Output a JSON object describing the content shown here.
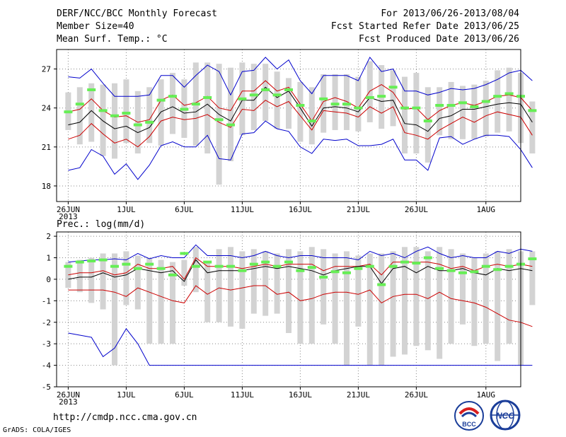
{
  "header": {
    "title": "DERF/NCC/BCC Monthly Forecast",
    "member_size": "Member Size=40",
    "variable": "Mean Surf. Temp.: °C",
    "period": "For 2013/06/26-2013/08/04",
    "refer_date": "Fcst Started Refer Date 2013/06/25",
    "produced_date": "Fcst Produced Date 2013/06/26"
  },
  "footer": {
    "url": "http://cmdp.ncc.cma.gov.cn",
    "credit": "GrADS: COLA/IGES",
    "logo_left": "BCC",
    "logo_right": "NCC"
  },
  "colors": {
    "envelope": "#0000cc",
    "spread": "#cc0000",
    "mean": "#000000",
    "bar": "#d3d3d3",
    "marker": "#66ee55"
  },
  "chart_data": [
    {
      "type": "line",
      "title": "Mean Surf. Temp.: °C",
      "x_tick_labels": [
        "26JUN",
        "1JUL",
        "6JUL",
        "11JUL",
        "16JUL",
        "21JUL",
        "26JUL",
        "1AUG"
      ],
      "x_year_label": "2013",
      "x_tick_day_index": [
        0,
        5,
        10,
        15,
        20,
        25,
        30,
        36
      ],
      "x_range": [
        -1,
        39
      ],
      "ylim": [
        16.8,
        28.5
      ],
      "y_ticks": [
        18,
        21,
        24,
        27
      ],
      "series": [
        {
          "name": "max",
          "values": [
            26.4,
            26.3,
            27.0,
            25.9,
            24.9,
            24.9,
            24.9,
            25.0,
            26.5,
            26.5,
            25.6,
            26.5,
            27.3,
            26.8,
            25.0,
            26.8,
            26.9,
            27.9,
            27.0,
            27.7,
            26.1,
            25.1,
            26.5,
            26.5,
            26.5,
            26.1,
            27.9,
            26.8,
            27.0,
            25.3,
            25.3,
            25.0,
            25.2,
            25.5,
            25.4,
            25.5,
            25.8,
            26.2,
            26.7,
            26.9,
            26.1
          ]
        },
        {
          "name": "upper",
          "values": [
            23.7,
            23.9,
            24.7,
            23.8,
            23.3,
            23.4,
            22.9,
            23.1,
            24.6,
            25.0,
            24.2,
            24.4,
            24.9,
            24.0,
            23.8,
            25.3,
            25.3,
            26.1,
            25.3,
            25.6,
            24.3,
            23.0,
            24.5,
            24.8,
            24.5,
            24.0,
            25.3,
            25.8,
            25.2,
            23.9,
            24.0,
            23.1,
            23.8,
            24.2,
            24.4,
            24.2,
            24.5,
            24.9,
            25.0,
            24.8,
            23.8
          ]
        },
        {
          "name": "mean",
          "values": [
            22.7,
            22.9,
            23.8,
            23.0,
            22.4,
            22.6,
            22.1,
            22.5,
            23.7,
            24.1,
            23.6,
            23.7,
            24.3,
            23.5,
            23.0,
            24.6,
            24.6,
            25.6,
            24.8,
            25.3,
            24.0,
            22.6,
            24.0,
            24.1,
            24.0,
            23.7,
            24.8,
            24.5,
            24.6,
            22.8,
            22.7,
            22.2,
            23.2,
            23.4,
            23.9,
            23.9,
            24.1,
            24.3,
            24.4,
            24.3,
            22.9
          ]
        },
        {
          "name": "lower",
          "values": [
            21.6,
            21.9,
            22.8,
            22.0,
            21.3,
            21.6,
            21.0,
            21.8,
            23.0,
            23.3,
            23.1,
            23.2,
            23.5,
            22.9,
            22.5,
            23.9,
            23.8,
            24.6,
            24.1,
            24.5,
            23.4,
            22.3,
            23.8,
            23.7,
            23.6,
            23.3,
            24.1,
            23.6,
            24.1,
            22.1,
            21.9,
            21.6,
            22.3,
            22.8,
            23.3,
            22.9,
            23.4,
            23.7,
            23.5,
            23.3,
            21.9
          ]
        },
        {
          "name": "min",
          "values": [
            19.2,
            19.4,
            20.8,
            20.3,
            18.9,
            19.7,
            18.5,
            19.6,
            21.1,
            21.4,
            21.0,
            21.0,
            21.9,
            20.1,
            20.0,
            22.0,
            22.1,
            23.0,
            22.4,
            22.2,
            21.0,
            20.5,
            21.6,
            21.5,
            21.6,
            21.1,
            21.1,
            21.2,
            21.6,
            20.0,
            20.0,
            19.2,
            21.7,
            21.8,
            21.2,
            21.6,
            21.9,
            21.9,
            21.8,
            20.8,
            19.4
          ]
        },
        {
          "name": "bar_top",
          "values": [
            25.2,
            25.6,
            25.9,
            25.8,
            25.9,
            26.2,
            25.3,
            25.6,
            26.2,
            26.7,
            26.2,
            27.5,
            27.5,
            27.4,
            27.1,
            27.5,
            27.4,
            27.4,
            26.8,
            26.3,
            26.0,
            25.6,
            26.6,
            26.6,
            26.6,
            26.4,
            27.6,
            27.3,
            26.9,
            26.4,
            26.7,
            25.6,
            25.6,
            26.0,
            25.7,
            25.8,
            26.1,
            26.9,
            27.1,
            26.7,
            24.5
          ]
        },
        {
          "name": "bar_bottom",
          "values": [
            22.3,
            21.2,
            21.4,
            20.3,
            20.1,
            21.3,
            20.5,
            21.3,
            21.1,
            22.0,
            21.7,
            21.1,
            20.5,
            18.1,
            19.9,
            21.9,
            22.3,
            23.0,
            22.4,
            22.4,
            21.4,
            21.2,
            22.1,
            22.3,
            22.3,
            22.2,
            22.9,
            22.4,
            22.6,
            20.5,
            20.5,
            19.8,
            21.9,
            21.6,
            21.6,
            21.6,
            21.8,
            22.1,
            22.2,
            21.3,
            20.5
          ]
        },
        {
          "name": "marker",
          "values": [
            23.7,
            24.3,
            25.4,
            23.8,
            23.4,
            23.6,
            22.7,
            22.9,
            24.6,
            24.9,
            23.9,
            24.3,
            24.8,
            23.1,
            22.7,
            24.7,
            25.0,
            25.4,
            25.0,
            25.4,
            24.2,
            23.0,
            24.7,
            24.3,
            24.3,
            24.0,
            24.8,
            24.9,
            25.6,
            24.0,
            24.0,
            23.0,
            24.2,
            24.2,
            24.4,
            24.1,
            24.5,
            24.9,
            25.1,
            24.9,
            23.8
          ]
        }
      ]
    },
    {
      "type": "line",
      "title": "Prec.: log(mm/d)",
      "x_tick_labels": [
        "26JUN",
        "1JUL",
        "6JUL",
        "11JUL",
        "16JUL",
        "21JUL",
        "26JUL",
        "1AUG"
      ],
      "x_year_label": "2013",
      "x_tick_day_index": [
        0,
        5,
        10,
        15,
        20,
        25,
        30,
        36
      ],
      "x_range": [
        -1,
        39
      ],
      "ylim": [
        -5,
        2.2
      ],
      "y_ticks": [
        -5,
        -4,
        -3,
        -2,
        -1,
        0,
        1,
        2
      ],
      "series": [
        {
          "name": "max",
          "values": [
            0.8,
            0.85,
            0.9,
            0.9,
            0.95,
            0.9,
            1.2,
            0.95,
            1.1,
            1.0,
            1.0,
            1.6,
            1.1,
            1.1,
            1.1,
            1.0,
            1.1,
            1.3,
            1.1,
            1.0,
            1.1,
            1.1,
            1.0,
            1.0,
            1.0,
            0.9,
            1.3,
            1.1,
            1.2,
            1.0,
            1.3,
            1.5,
            1.2,
            1.0,
            1.1,
            1.0,
            1.0,
            1.3,
            1.2,
            1.4,
            1.3
          ]
        },
        {
          "name": "upper",
          "values": [
            0.2,
            0.3,
            0.3,
            0.4,
            0.2,
            0.3,
            0.7,
            0.5,
            0.5,
            0.6,
            0.0,
            1.0,
            0.6,
            0.6,
            0.6,
            0.5,
            0.6,
            0.7,
            0.6,
            0.7,
            0.7,
            0.7,
            0.4,
            0.6,
            0.6,
            0.6,
            0.7,
            0.2,
            0.8,
            0.8,
            0.8,
            0.8,
            0.7,
            0.5,
            0.6,
            0.4,
            0.6,
            0.7,
            0.6,
            0.7,
            0.6
          ]
        },
        {
          "name": "mean",
          "values": [
            0.0,
            0.1,
            0.1,
            0.3,
            0.1,
            0.2,
            0.5,
            0.4,
            0.3,
            0.4,
            -0.1,
            0.9,
            0.3,
            0.4,
            0.4,
            0.4,
            0.5,
            0.6,
            0.5,
            0.6,
            0.5,
            0.4,
            0.2,
            0.4,
            0.5,
            0.6,
            0.6,
            -0.2,
            0.5,
            0.6,
            0.3,
            0.6,
            0.4,
            0.4,
            0.5,
            0.3,
            0.2,
            0.5,
            0.4,
            0.5,
            0.4
          ]
        },
        {
          "name": "lower",
          "values": [
            -0.5,
            -0.5,
            -0.5,
            -0.5,
            -0.6,
            -0.8,
            -0.4,
            -0.6,
            -0.8,
            -1.0,
            -1.1,
            -0.3,
            -0.7,
            -0.4,
            -0.5,
            -0.4,
            -0.3,
            -0.3,
            -0.7,
            -0.6,
            -1.0,
            -0.9,
            -0.7,
            -0.6,
            -0.6,
            -0.7,
            -0.5,
            -1.1,
            -0.8,
            -0.7,
            -0.7,
            -0.9,
            -0.6,
            -0.9,
            -1.0,
            -1.1,
            -1.3,
            -1.6,
            -1.9,
            -2.0,
            -2.2
          ]
        },
        {
          "name": "min",
          "values": [
            -2.5,
            -2.6,
            -2.7,
            -3.6,
            -3.2,
            -2.3,
            -3.0,
            -4.0,
            -4.0,
            -4.0,
            -4.0,
            -4.0,
            -4.0,
            -4.0,
            -4.0,
            -4.0,
            -4.0,
            -4.0,
            -4.0,
            -4.0,
            -4.0,
            -4.0,
            -4.0,
            -4.0,
            -4.0,
            -4.0,
            -4.0,
            -4.0,
            -4.0,
            -4.0,
            -4.0,
            -4.0,
            -4.0,
            -4.0,
            -4.0,
            -4.0,
            -4.0,
            -4.0,
            -4.0,
            -4.0,
            -4.0
          ]
        },
        {
          "name": "bar_top",
          "values": [
            0.8,
            0.9,
            1.0,
            1.2,
            1.2,
            1.3,
            1.1,
            1.0,
            0.9,
            0.8,
            0.9,
            1.5,
            0.8,
            1.4,
            1.5,
            1.3,
            1.4,
            1.3,
            1.2,
            1.4,
            1.3,
            1.5,
            1.4,
            1.2,
            1.3,
            1.1,
            1.2,
            1.2,
            1.3,
            1.5,
            1.5,
            1.3,
            1.5,
            1.4,
            1.2,
            1.0,
            1.2,
            1.3,
            1.4,
            1.3,
            1.3
          ]
        },
        {
          "name": "bar_bottom",
          "values": [
            -0.4,
            -0.6,
            -1.1,
            -1.4,
            -4.0,
            -1.2,
            -1.4,
            -3.0,
            -3.0,
            -3.0,
            -0.3,
            -0.6,
            -2.0,
            -2.0,
            -2.2,
            -2.3,
            -1.6,
            -1.7,
            -1.6,
            -2.5,
            -3.0,
            -3.0,
            -2.1,
            -3.0,
            -4.0,
            -2.2,
            -4.0,
            -4.0,
            -3.6,
            -3.5,
            -3.1,
            -3.3,
            -3.7,
            -3.0,
            -2.1,
            -3.1,
            -3.0,
            -3.8,
            -3.0,
            -4.0,
            -1.2
          ]
        },
        {
          "name": "marker",
          "values": [
            0.6,
            0.8,
            0.85,
            0.9,
            0.6,
            0.7,
            0.5,
            0.7,
            0.5,
            0.2,
            1.2,
            0.6,
            0.8,
            0.6,
            0.6,
            0.4,
            0.7,
            0.8,
            0.6,
            0.8,
            0.4,
            0.55,
            0.1,
            0.35,
            0.3,
            0.5,
            0.6,
            -0.25,
            0.6,
            0.8,
            0.75,
            1.0,
            0.5,
            0.4,
            0.3,
            0.35,
            0.6,
            0.45,
            0.6,
            0.7,
            0.95
          ]
        }
      ]
    }
  ]
}
